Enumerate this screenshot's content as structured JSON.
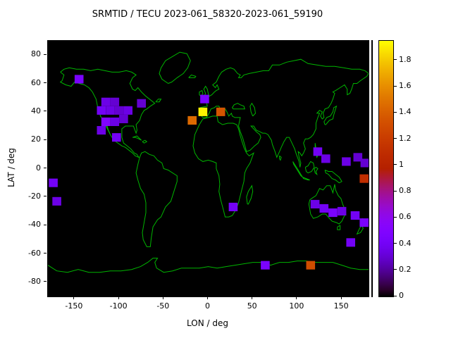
{
  "chart_data": {
    "type": "heatmap",
    "title": "SRMTID / TECU 2023-061_58320-2023-061_59190",
    "xlabel": "LON / deg",
    "ylabel": "LAT / deg",
    "xlim": [
      -180,
      180
    ],
    "ylim": [
      -90,
      90
    ],
    "x_ticks": [
      -150,
      -100,
      -50,
      0,
      50,
      100,
      150
    ],
    "y_ticks": [
      -80,
      -60,
      -40,
      -20,
      0,
      20,
      40,
      60,
      80
    ],
    "grid": false,
    "legend": "colorbar-right",
    "colorbar": {
      "ticks": [
        0,
        0.2,
        0.4,
        0.6,
        0.8,
        1,
        1.2,
        1.4,
        1.6,
        1.8
      ],
      "vmin": 0,
      "vmax": 1.95,
      "colormap": "gnuplot"
    },
    "map": {
      "background": "#000000",
      "coastline_color": "#00b400"
    },
    "cell_size": {
      "lon": 10,
      "lat": 6
    },
    "points": [
      {
        "lon": -145,
        "lat": 63,
        "value": 0.45
      },
      {
        "lon": -115,
        "lat": 47,
        "value": 0.35
      },
      {
        "lon": -105,
        "lat": 47,
        "value": 0.3
      },
      {
        "lon": -120,
        "lat": 41,
        "value": 0.4
      },
      {
        "lon": -110,
        "lat": 41,
        "value": 0.35
      },
      {
        "lon": -100,
        "lat": 41,
        "value": 0.3
      },
      {
        "lon": -90,
        "lat": 41,
        "value": 0.35
      },
      {
        "lon": -75,
        "lat": 46,
        "value": 0.3
      },
      {
        "lon": -115,
        "lat": 33,
        "value": 0.5
      },
      {
        "lon": -105,
        "lat": 33,
        "value": 0.35
      },
      {
        "lon": -95,
        "lat": 35,
        "value": 0.3
      },
      {
        "lon": -120,
        "lat": 27,
        "value": 0.35
      },
      {
        "lon": -103,
        "lat": 22,
        "value": 0.4
      },
      {
        "lon": -6,
        "lat": 40,
        "value": 1.92
      },
      {
        "lon": -18,
        "lat": 34,
        "value": 1.45
      },
      {
        "lon": 14,
        "lat": 40,
        "value": 1.35
      },
      {
        "lon": -4,
        "lat": 49,
        "value": 0.45
      },
      {
        "lon": 123,
        "lat": 12,
        "value": 0.4
      },
      {
        "lon": 132,
        "lat": 7,
        "value": 0.35
      },
      {
        "lon": 155,
        "lat": 5,
        "value": 0.35
      },
      {
        "lon": 168,
        "lat": 8,
        "value": 0.3
      },
      {
        "lon": 176,
        "lat": 4,
        "value": 0.3
      },
      {
        "lon": 175,
        "lat": -7,
        "value": 1.1
      },
      {
        "lon": -174,
        "lat": -10,
        "value": 0.4
      },
      {
        "lon": -170,
        "lat": -23,
        "value": 0.35
      },
      {
        "lon": 28,
        "lat": -27,
        "value": 0.4
      },
      {
        "lon": 120,
        "lat": -25,
        "value": 0.35
      },
      {
        "lon": 130,
        "lat": -28,
        "value": 0.4
      },
      {
        "lon": 140,
        "lat": -31,
        "value": 0.45
      },
      {
        "lon": 150,
        "lat": -30,
        "value": 0.35
      },
      {
        "lon": 165,
        "lat": -33,
        "value": 0.4
      },
      {
        "lon": 175,
        "lat": -38,
        "value": 0.45
      },
      {
        "lon": 160,
        "lat": -52,
        "value": 0.4
      },
      {
        "lon": 64,
        "lat": -68,
        "value": 0.45
      },
      {
        "lon": 115,
        "lat": -68,
        "value": 1.3
      }
    ]
  }
}
